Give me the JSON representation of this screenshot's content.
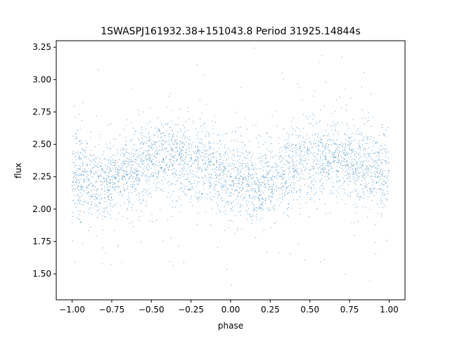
{
  "chart_data": {
    "type": "scatter",
    "title": "1SWASPJ161932.38+151043.8 Period 31925.14844s",
    "xlabel": "phase",
    "ylabel": "flux",
    "xlim": [
      -1.1,
      1.1
    ],
    "ylim": [
      1.3,
      3.3
    ],
    "xticks": [
      -1.0,
      -0.75,
      -0.5,
      -0.25,
      0.0,
      0.25,
      0.5,
      0.75,
      1.0
    ],
    "xtick_labels": [
      "−1.00",
      "−0.75",
      "−0.50",
      "−0.25",
      "0.00",
      "0.25",
      "0.50",
      "0.75",
      "1.00"
    ],
    "yticks": [
      1.5,
      1.75,
      2.0,
      2.25,
      2.5,
      2.75,
      3.0,
      3.25
    ],
    "ytick_labels": [
      "1.50",
      "1.75",
      "2.00",
      "2.25",
      "2.50",
      "2.75",
      "3.00",
      "3.25"
    ],
    "grid": false,
    "point_color": "#1f77b4",
    "series": [
      {
        "phase": [
          -1.0,
          -0.9,
          -0.8,
          -0.7,
          -0.6,
          -0.5,
          -0.4,
          -0.3,
          -0.2,
          -0.1,
          0.0,
          0.1,
          0.2,
          0.3,
          0.4,
          0.5,
          0.6,
          0.7,
          0.8,
          0.9,
          1.0
        ],
        "median_flux": [
          2.27,
          2.22,
          2.2,
          2.25,
          2.33,
          2.38,
          2.41,
          2.39,
          2.35,
          2.29,
          2.23,
          2.2,
          2.19,
          2.26,
          2.34,
          2.38,
          2.4,
          2.39,
          2.35,
          2.3,
          2.27
        ],
        "scatter": 0.15,
        "flux_range": [
          1.35,
          3.27
        ]
      }
    ]
  }
}
